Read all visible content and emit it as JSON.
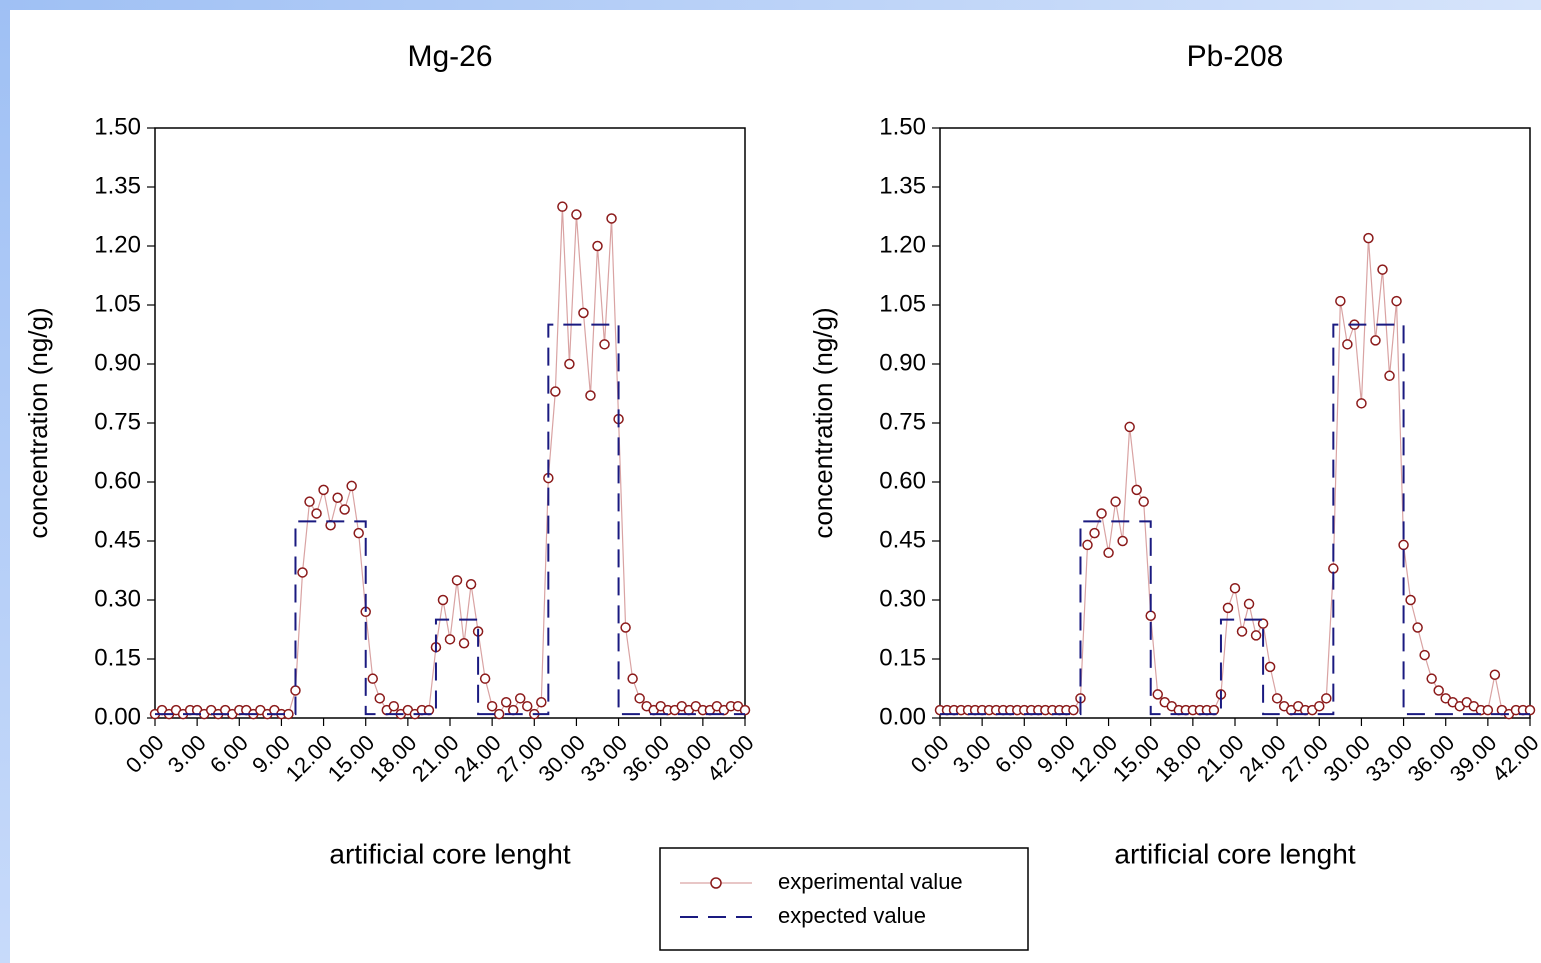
{
  "chart_data": [
    {
      "type": "line",
      "title": "Mg-26",
      "x_label": "artificial core lenght",
      "y_label": "concentration (ng/g)",
      "xlim": [
        0,
        42
      ],
      "ylim": [
        0,
        1.5
      ],
      "xticks": [
        {
          "value": 0,
          "label": "0.00"
        },
        {
          "value": 3,
          "label": "3.00"
        },
        {
          "value": 6,
          "label": "6.00"
        },
        {
          "value": 9,
          "label": "9.00"
        },
        {
          "value": 12,
          "label": "12.00"
        },
        {
          "value": 15,
          "label": "15.00"
        },
        {
          "value": 18,
          "label": "18.00"
        },
        {
          "value": 21,
          "label": "21.00"
        },
        {
          "value": 24,
          "label": "24.00"
        },
        {
          "value": 27,
          "label": "27.00"
        },
        {
          "value": 30,
          "label": "30.00"
        },
        {
          "value": 33,
          "label": "33.00"
        },
        {
          "value": 36,
          "label": "36.00"
        },
        {
          "value": 39,
          "label": "39.00"
        },
        {
          "value": 42,
          "label": "42.00"
        }
      ],
      "yticks": [
        {
          "value": 0,
          "label": "0.00"
        },
        {
          "value": 0.15,
          "label": "0.15"
        },
        {
          "value": 0.3,
          "label": "0.30"
        },
        {
          "value": 0.45,
          "label": "0.45"
        },
        {
          "value": 0.6,
          "label": "0.60"
        },
        {
          "value": 0.75,
          "label": "0.75"
        },
        {
          "value": 0.9,
          "label": "0.90"
        },
        {
          "value": 1.05,
          "label": "1.05"
        },
        {
          "value": 1.2,
          "label": "1.20"
        },
        {
          "value": 1.35,
          "label": "1.35"
        },
        {
          "value": 1.5,
          "label": "1.50"
        }
      ],
      "series": [
        {
          "name": "experimental value",
          "color": "#8b1a1a",
          "line_color": "#d9a3a3",
          "marker": "circle",
          "x": [
            0,
            0.5,
            1,
            1.5,
            2,
            2.5,
            3,
            3.5,
            4,
            4.5,
            5,
            5.5,
            6,
            6.5,
            7,
            7.5,
            8,
            8.5,
            9,
            9.5,
            10,
            10.5,
            11,
            11.5,
            12,
            12.5,
            13,
            13.5,
            14,
            14.5,
            15,
            15.5,
            16,
            16.5,
            17,
            17.5,
            18,
            18.5,
            19,
            19.5,
            20,
            20.5,
            21,
            21.5,
            22,
            22.5,
            23,
            23.5,
            24,
            24.5,
            25,
            25.5,
            26,
            26.5,
            27,
            27.5,
            28,
            28.5,
            29,
            29.5,
            30,
            30.5,
            31,
            31.5,
            32,
            32.5,
            33,
            33.5,
            34,
            34.5,
            35,
            35.5,
            36,
            36.5,
            37,
            37.5,
            38,
            38.5,
            39,
            39.5,
            40,
            40.5,
            41,
            41.5,
            42
          ],
          "values": [
            0.01,
            0.02,
            0.01,
            0.02,
            0.01,
            0.02,
            0.02,
            0.01,
            0.02,
            0.01,
            0.02,
            0.01,
            0.02,
            0.02,
            0.01,
            0.02,
            0.01,
            0.02,
            0.01,
            0.01,
            0.07,
            0.37,
            0.55,
            0.52,
            0.58,
            0.49,
            0.56,
            0.53,
            0.59,
            0.47,
            0.27,
            0.1,
            0.05,
            0.02,
            0.03,
            0.01,
            0.02,
            0.01,
            0.02,
            0.02,
            0.18,
            0.3,
            0.2,
            0.35,
            0.19,
            0.34,
            0.22,
            0.1,
            0.03,
            0.01,
            0.04,
            0.02,
            0.05,
            0.03,
            0.01,
            0.04,
            0.61,
            0.83,
            1.3,
            0.9,
            1.28,
            1.03,
            0.82,
            1.2,
            0.95,
            1.27,
            0.76,
            0.23,
            0.1,
            0.05,
            0.03,
            0.02,
            0.03,
            0.02,
            0.02,
            0.03,
            0.02,
            0.03,
            0.02,
            0.02,
            0.03,
            0.02,
            0.03,
            0.03,
            0.02
          ]
        },
        {
          "name": "expected value",
          "color": "#1a1a80",
          "dashed": true,
          "x": [
            0,
            10,
            10,
            15,
            15,
            20,
            20,
            23,
            23,
            28,
            28,
            33,
            33,
            42
          ],
          "values": [
            0.01,
            0.01,
            0.5,
            0.5,
            0.01,
            0.01,
            0.25,
            0.25,
            0.01,
            0.01,
            1.0,
            1.0,
            0.01,
            0.01
          ]
        }
      ]
    },
    {
      "type": "line",
      "title": "Pb-208",
      "x_label": "artificial core lenght",
      "y_label": "concentration (ng/g)",
      "xlim": [
        0,
        42
      ],
      "ylim": [
        0,
        1.5
      ],
      "xticks": [
        {
          "value": 0,
          "label": "0.00"
        },
        {
          "value": 3,
          "label": "3.00"
        },
        {
          "value": 6,
          "label": "6.00"
        },
        {
          "value": 9,
          "label": "9.00"
        },
        {
          "value": 12,
          "label": "12.00"
        },
        {
          "value": 15,
          "label": "15.00"
        },
        {
          "value": 18,
          "label": "18.00"
        },
        {
          "value": 21,
          "label": "21.00"
        },
        {
          "value": 24,
          "label": "24.00"
        },
        {
          "value": 27,
          "label": "27.00"
        },
        {
          "value": 30,
          "label": "30.00"
        },
        {
          "value": 33,
          "label": "33.00"
        },
        {
          "value": 36,
          "label": "36.00"
        },
        {
          "value": 39,
          "label": "39.00"
        },
        {
          "value": 42,
          "label": "42.00"
        }
      ],
      "yticks": [
        {
          "value": 0,
          "label": "0.00"
        },
        {
          "value": 0.15,
          "label": "0.15"
        },
        {
          "value": 0.3,
          "label": "0.30"
        },
        {
          "value": 0.45,
          "label": "0.45"
        },
        {
          "value": 0.6,
          "label": "0.60"
        },
        {
          "value": 0.75,
          "label": "0.75"
        },
        {
          "value": 0.9,
          "label": "0.90"
        },
        {
          "value": 1.05,
          "label": "1.05"
        },
        {
          "value": 1.2,
          "label": "1.20"
        },
        {
          "value": 1.35,
          "label": "1.35"
        },
        {
          "value": 1.5,
          "label": "1.50"
        }
      ],
      "series": [
        {
          "color": "#8b1a1a",
          "line_color": "#d9a3a3",
          "marker": "circle",
          "x": [
            0,
            0.5,
            1,
            1.5,
            2,
            2.5,
            3,
            3.5,
            4,
            4.5,
            5,
            5.5,
            6,
            6.5,
            7,
            7.5,
            8,
            8.5,
            9,
            9.5,
            10,
            10.5,
            11,
            11.5,
            12,
            12.5,
            13,
            13.5,
            14,
            14.5,
            15,
            15.5,
            16,
            16.5,
            17,
            17.5,
            18,
            18.5,
            19,
            19.5,
            20,
            20.5,
            21,
            21.5,
            22,
            22.5,
            23,
            23.5,
            24,
            24.5,
            25,
            25.5,
            26,
            26.5,
            27,
            27.5,
            28,
            28.5,
            29,
            29.5,
            30,
            30.5,
            31,
            31.5,
            32,
            32.5,
            33,
            33.5,
            34,
            34.5,
            35,
            35.5,
            36,
            36.5,
            37,
            37.5,
            38,
            38.5,
            39,
            39.5,
            40,
            40.5,
            41,
            41.5,
            42
          ],
          "values": [
            0.02,
            0.02,
            0.02,
            0.02,
            0.02,
            0.02,
            0.02,
            0.02,
            0.02,
            0.02,
            0.02,
            0.02,
            0.02,
            0.02,
            0.02,
            0.02,
            0.02,
            0.02,
            0.02,
            0.02,
            0.05,
            0.44,
            0.47,
            0.52,
            0.42,
            0.55,
            0.45,
            0.74,
            0.58,
            0.55,
            0.26,
            0.06,
            0.04,
            0.03,
            0.02,
            0.02,
            0.02,
            0.02,
            0.02,
            0.02,
            0.06,
            0.28,
            0.33,
            0.22,
            0.29,
            0.21,
            0.24,
            0.13,
            0.05,
            0.03,
            0.02,
            0.03,
            0.02,
            0.02,
            0.03,
            0.05,
            0.38,
            1.06,
            0.95,
            1.0,
            0.8,
            1.22,
            0.96,
            1.14,
            0.87,
            1.06,
            0.44,
            0.3,
            0.23,
            0.16,
            0.1,
            0.07,
            0.05,
            0.04,
            0.03,
            0.04,
            0.03,
            0.02,
            0.02,
            0.11,
            0.02,
            0.01,
            0.02,
            0.02,
            0.02
          ]
        },
        {
          "color": "#1a1a80",
          "dashed": true,
          "x": [
            0,
            10,
            10,
            15,
            15,
            20,
            20,
            23,
            23,
            28,
            28,
            33,
            33,
            42
          ],
          "values": [
            0.01,
            0.01,
            0.5,
            0.5,
            0.01,
            0.01,
            0.25,
            0.25,
            0.01,
            0.01,
            1.0,
            1.0,
            0.01,
            0.01
          ]
        }
      ]
    }
  ]
}
